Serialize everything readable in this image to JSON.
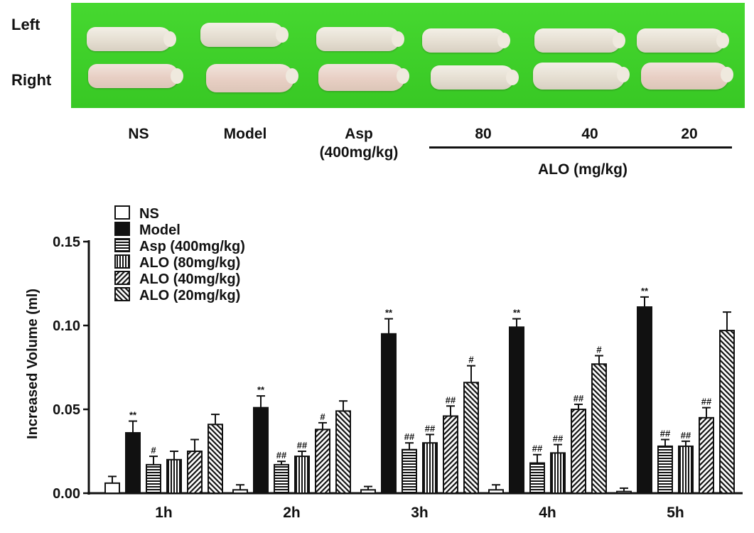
{
  "photo": {
    "row_labels": [
      "Left",
      "Right"
    ],
    "group_labels": [
      {
        "name": "NS"
      },
      {
        "name": "Model"
      },
      {
        "name": "Asp",
        "sub": "(400mg/kg)"
      },
      {
        "name": "80"
      },
      {
        "name": "40"
      },
      {
        "name": "20"
      }
    ],
    "group_bracket_label": "ALO (mg/kg)",
    "background_color": "#3fd12a"
  },
  "chart_data": {
    "type": "bar",
    "ylabel": "Increased Volume (ml)",
    "xlabel": "",
    "ylim": [
      0,
      0.15
    ],
    "yticks": [
      "0.00",
      "0.05",
      "0.10",
      "0.15"
    ],
    "categories": [
      "1h",
      "2h",
      "3h",
      "4h",
      "5h"
    ],
    "legend_position": "top-left",
    "series": [
      {
        "name": "NS",
        "pattern": "white",
        "values": [
          0.006,
          0.002,
          0.002,
          0.002,
          0.001
        ],
        "errors": [
          0.004,
          0.003,
          0.002,
          0.003,
          0.002
        ],
        "marks": [
          "",
          "",
          "",
          "",
          ""
        ]
      },
      {
        "name": "Model",
        "pattern": "black",
        "values": [
          0.036,
          0.051,
          0.095,
          0.099,
          0.111
        ],
        "errors": [
          0.007,
          0.007,
          0.009,
          0.005,
          0.006
        ],
        "marks": [
          "**",
          "**",
          "**",
          "**",
          "**"
        ]
      },
      {
        "name": "Asp (400mg/kg)",
        "pattern": "horizontal",
        "values": [
          0.017,
          0.017,
          0.026,
          0.018,
          0.028
        ],
        "errors": [
          0.005,
          0.002,
          0.004,
          0.005,
          0.004
        ],
        "marks": [
          "#",
          "##",
          "##",
          "##",
          "##"
        ]
      },
      {
        "name": "ALO (80mg/kg)",
        "pattern": "vertical",
        "values": [
          0.02,
          0.022,
          0.03,
          0.024,
          0.028
        ],
        "errors": [
          0.005,
          0.003,
          0.005,
          0.005,
          0.003
        ],
        "marks": [
          "",
          "##",
          "##",
          "##",
          "##"
        ]
      },
      {
        "name": "ALO (40mg/kg)",
        "pattern": "diag-fwd",
        "values": [
          0.025,
          0.038,
          0.046,
          0.05,
          0.045
        ],
        "errors": [
          0.007,
          0.004,
          0.006,
          0.003,
          0.006
        ],
        "marks": [
          "",
          "#",
          "##",
          "##",
          "##"
        ]
      },
      {
        "name": "ALO (20mg/kg)",
        "pattern": "diag-back",
        "values": [
          0.041,
          0.049,
          0.066,
          0.077,
          0.097
        ],
        "errors": [
          0.006,
          0.006,
          0.01,
          0.005,
          0.011
        ],
        "marks": [
          "",
          "",
          "#",
          "#",
          ""
        ]
      }
    ]
  }
}
